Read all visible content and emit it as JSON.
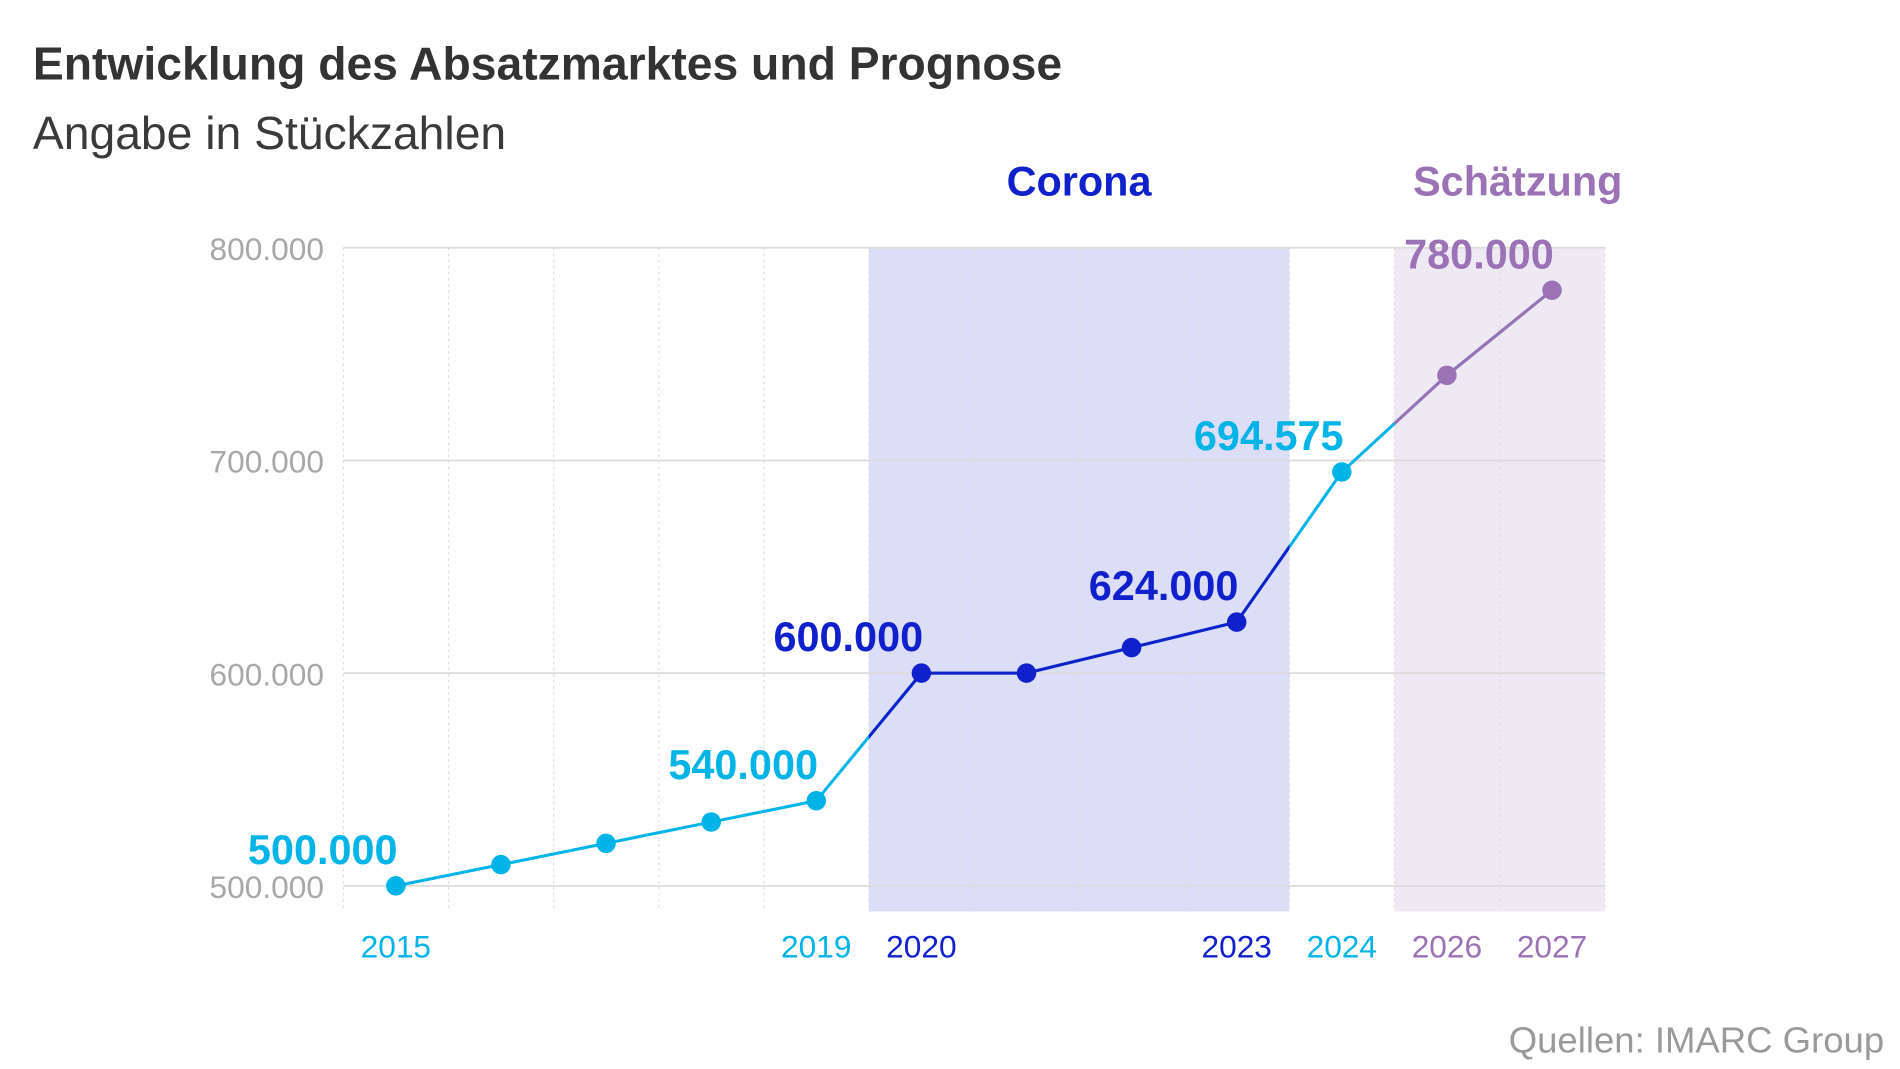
{
  "chart_data": {
    "type": "line",
    "title": "Entwicklung des Absatzmarktes und Prognose",
    "subtitle": "Angabe in Stückzahlen",
    "source": "Quellen: IMARC Group",
    "x": [
      "2015",
      "2016",
      "2017",
      "2018",
      "2019",
      "2020",
      "2021",
      "2022",
      "2023",
      "2024",
      "2026",
      "2027"
    ],
    "values": [
      500000,
      510000,
      520000,
      530000,
      540000,
      600000,
      600000,
      612000,
      624000,
      694575,
      740000,
      780000
    ],
    "ylim": [
      500000,
      800000
    ],
    "yticks": [
      {
        "value": 800000,
        "label": "800.000"
      },
      {
        "value": 700000,
        "label": "700.000"
      },
      {
        "value": 600000,
        "label": "600.000"
      },
      {
        "value": 500000,
        "label": "500.000"
      }
    ],
    "xtick_labels": [
      {
        "year": "2015",
        "label": "2015",
        "color": "#00b4e8"
      },
      {
        "year": "2019",
        "label": "2019",
        "color": "#00b4e8"
      },
      {
        "year": "2020",
        "label": "2020",
        "color": "#1020cc"
      },
      {
        "year": "2023",
        "label": "2023",
        "color": "#1020cc"
      },
      {
        "year": "2024",
        "label": "2024",
        "color": "#00b4e8"
      },
      {
        "year": "2026",
        "label": "2026",
        "color": "#9b72b5"
      },
      {
        "year": "2027",
        "label": "2027",
        "color": "#9b72b5"
      }
    ],
    "data_labels": [
      {
        "year": "2015",
        "label": "500.000",
        "color": "#00b4e8"
      },
      {
        "year": "2019",
        "label": "540.000",
        "color": "#00b4e8"
      },
      {
        "year": "2020",
        "label": "600.000",
        "color": "#1020cc"
      },
      {
        "year": "2023",
        "label": "624.000",
        "color": "#1020cc"
      },
      {
        "year": "2024",
        "label": "694.575",
        "color": "#00b4e8"
      },
      {
        "year": "2027",
        "label": "780.000",
        "color": "#9b72b5"
      }
    ],
    "bands": [
      {
        "label": "Corona",
        "from": "2020",
        "to": "2023",
        "color": "#1020cc",
        "fill": "#dcdef7"
      },
      {
        "label": "Schätzung",
        "from": "2026",
        "to": "2027",
        "color": "#9b72b5",
        "fill": "#efe9f4"
      }
    ],
    "point_colors": [
      "#00b4e8",
      "#00b4e8",
      "#00b4e8",
      "#00b4e8",
      "#00b4e8",
      "#1020cc",
      "#1020cc",
      "#1020cc",
      "#1020cc",
      "#00b4e8",
      "#9b72b5",
      "#9b72b5"
    ],
    "grid": true,
    "legend": "none"
  }
}
